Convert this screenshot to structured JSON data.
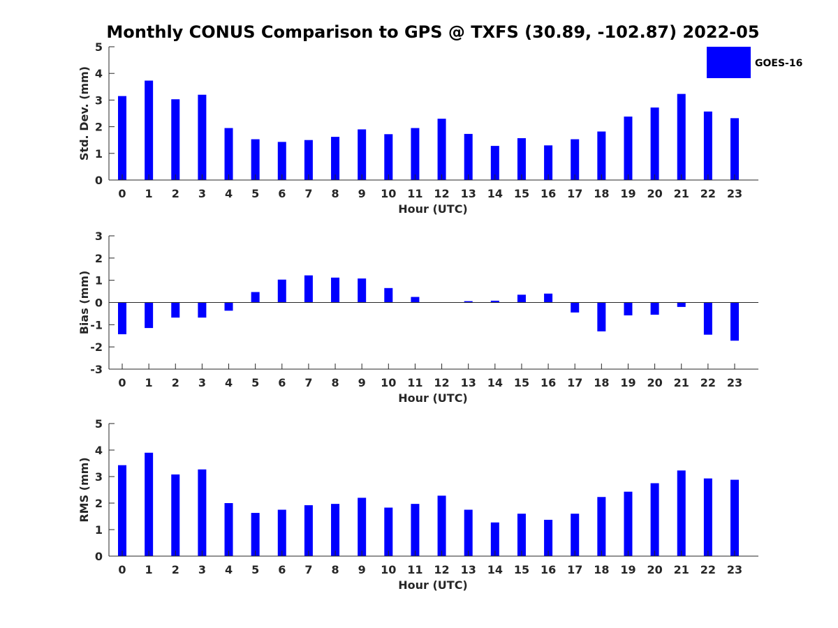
{
  "figure_title": "Monthly CONUS Comparison to GPS @ TXFS (30.89, -102.87) 2022-05",
  "legend": {
    "label": "GOES-16",
    "color": "#0000ff"
  },
  "chart_data": [
    {
      "type": "bar",
      "id": "stddev",
      "ylabel": "Std. Dev. (mm)",
      "xlabel": "Hour (UTC)",
      "ylim": [
        0,
        5
      ],
      "yticks": [
        0,
        1,
        2,
        3,
        4,
        5
      ],
      "categories": [
        "0",
        "1",
        "2",
        "3",
        "4",
        "5",
        "6",
        "7",
        "8",
        "9",
        "10",
        "11",
        "12",
        "13",
        "14",
        "15",
        "16",
        "17",
        "18",
        "19",
        "20",
        "21",
        "22",
        "23"
      ],
      "series": [
        {
          "name": "GOES-16",
          "values": [
            3.15,
            3.73,
            3.03,
            3.2,
            1.95,
            1.53,
            1.43,
            1.5,
            1.62,
            1.9,
            1.72,
            1.95,
            2.3,
            1.73,
            1.28,
            1.57,
            1.3,
            1.53,
            1.82,
            2.38,
            2.72,
            3.23,
            2.57,
            2.32
          ]
        }
      ]
    },
    {
      "type": "bar",
      "id": "bias",
      "ylabel": "Bias (mm)",
      "xlabel": "Hour (UTC)",
      "ylim": [
        -3,
        3
      ],
      "yticks": [
        -3,
        -2,
        -1,
        0,
        1,
        2,
        3
      ],
      "categories": [
        "0",
        "1",
        "2",
        "3",
        "4",
        "5",
        "6",
        "7",
        "8",
        "9",
        "10",
        "11",
        "12",
        "13",
        "14",
        "15",
        "16",
        "17",
        "18",
        "19",
        "20",
        "21",
        "22",
        "23"
      ],
      "series": [
        {
          "name": "GOES-16",
          "values": [
            -1.43,
            -1.15,
            -0.68,
            -0.68,
            -0.37,
            0.47,
            1.03,
            1.22,
            1.12,
            1.08,
            0.65,
            0.25,
            0.0,
            0.06,
            0.08,
            0.35,
            0.4,
            -0.45,
            -1.3,
            -0.58,
            -0.55,
            -0.2,
            -1.45,
            -1.72
          ]
        }
      ]
    },
    {
      "type": "bar",
      "id": "rms",
      "ylabel": "RMS (mm)",
      "xlabel": "Hour (UTC)",
      "ylim": [
        0,
        5
      ],
      "yticks": [
        0,
        1,
        2,
        3,
        4,
        5
      ],
      "categories": [
        "0",
        "1",
        "2",
        "3",
        "4",
        "5",
        "6",
        "7",
        "8",
        "9",
        "10",
        "11",
        "12",
        "13",
        "14",
        "15",
        "16",
        "17",
        "18",
        "19",
        "20",
        "21",
        "22",
        "23"
      ],
      "series": [
        {
          "name": "GOES-16",
          "values": [
            3.43,
            3.9,
            3.08,
            3.27,
            2.0,
            1.63,
            1.75,
            1.92,
            1.97,
            2.2,
            1.83,
            1.97,
            2.28,
            1.75,
            1.27,
            1.6,
            1.37,
            1.6,
            2.23,
            2.43,
            2.75,
            3.23,
            2.93,
            2.88
          ]
        }
      ]
    }
  ]
}
